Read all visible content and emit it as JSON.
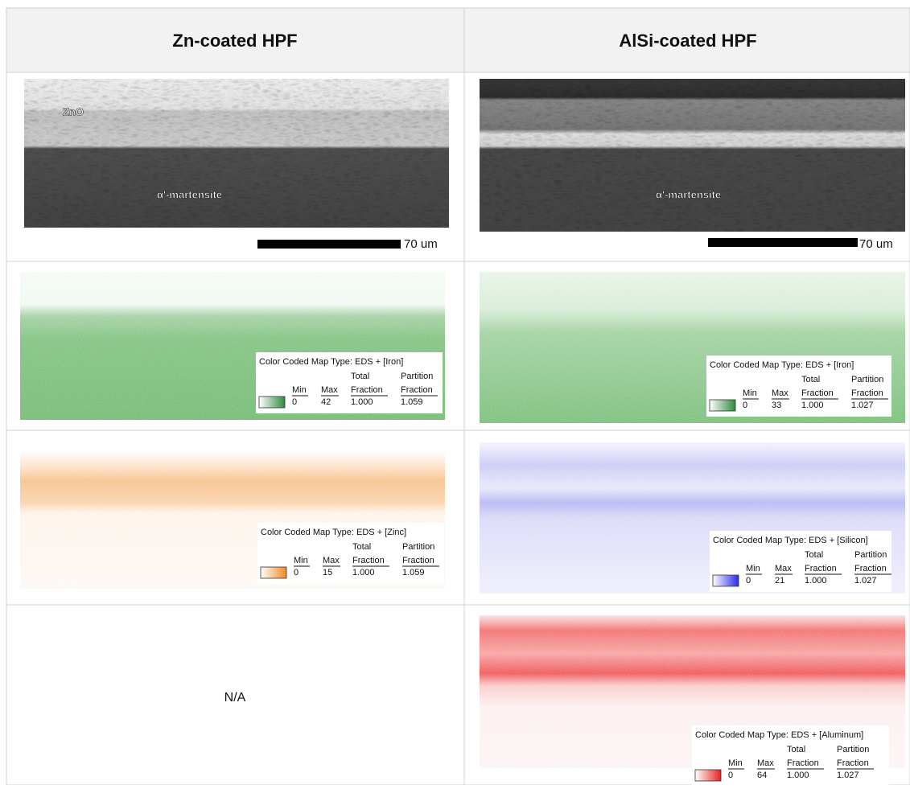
{
  "header": [
    "Zn-coated HPF",
    "AlSi-coated HPF"
  ],
  "micrographs": [
    {
      "labels": [
        "ZnO",
        "α'-martensite"
      ],
      "scale_bar": "70 um"
    },
    {
      "labels": [
        "α'-martensite"
      ],
      "scale_bar": "70 um"
    }
  ],
  "legend_header": {
    "min": "Min",
    "max": "Max",
    "total": [
      "Total",
      "Fraction"
    ],
    "partition": [
      "Partition",
      "Fraction"
    ]
  },
  "maps": [
    [
      {
        "title": "Color Coded Map Type: EDS + [Iron]",
        "min": "0",
        "max": "42",
        "total": "1.000",
        "partition": "1.059"
      },
      {
        "title": "Color Coded Map Type: EDS + [Iron]",
        "min": "0",
        "max": "33",
        "total": "1.000",
        "partition": "1.027"
      }
    ],
    [
      {
        "title": "Color Coded Map Type: EDS + [Zinc]",
        "min": "0",
        "max": "15",
        "total": "1.000",
        "partition": "1.059"
      },
      {
        "title": "Color Coded Map Type: EDS + [Silicon]",
        "min": "0",
        "max": "21",
        "total": "1.000",
        "partition": "1.027"
      }
    ],
    [
      "N/A",
      {
        "title": "Color Coded Map Type: EDS + [Aluminum]",
        "min": "0",
        "max": "64",
        "total": "1.000",
        "partition": "1.027"
      }
    ]
  ]
}
